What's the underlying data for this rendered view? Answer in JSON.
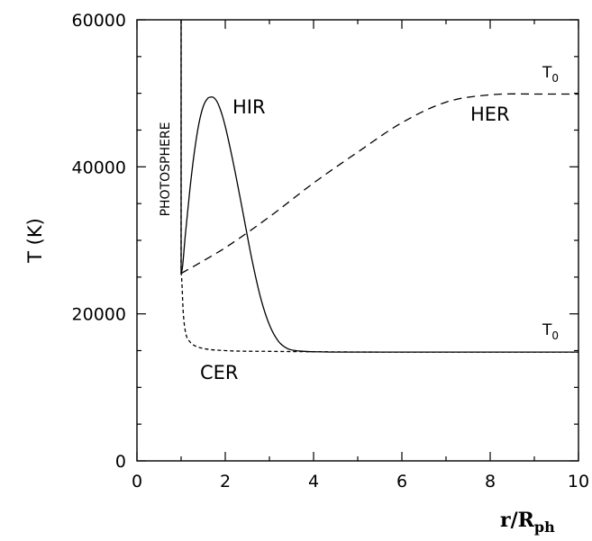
{
  "chart_data": {
    "type": "line",
    "title": "",
    "xlabel": {
      "main": "r/R",
      "sub": "ph"
    },
    "ylabel": "T (K)",
    "xlim": [
      0,
      10
    ],
    "ylim": [
      0,
      60000
    ],
    "xticks": [
      0,
      2,
      4,
      6,
      8,
      10
    ],
    "yticks": [
      0,
      20000,
      40000,
      60000
    ],
    "grid": false,
    "series": [
      {
        "name": "HIR",
        "style": "solid",
        "x": [
          1.0,
          1.0,
          1.1,
          1.2,
          1.3,
          1.4,
          1.5,
          1.6,
          1.7,
          1.8,
          1.9,
          2.0,
          2.2,
          2.4,
          2.6,
          2.8,
          3.0,
          3.2,
          3.4,
          3.6,
          3.8,
          4.0,
          4.5,
          5.0,
          6.0,
          8.0,
          10.0
        ],
        "y": [
          60000,
          25500,
          31000,
          37000,
          42000,
          45800,
          48200,
          49300,
          49500,
          49000,
          47600,
          45500,
          40000,
          33800,
          27500,
          22200,
          18500,
          16300,
          15300,
          15000,
          14900,
          14850,
          14800,
          14800,
          14800,
          14800,
          14800
        ]
      },
      {
        "name": "HER",
        "style": "long-dash",
        "x": [
          1.0,
          1.5,
          2.0,
          3.0,
          4.0,
          5.0,
          6.0,
          7.0,
          8.0,
          9.0,
          10.0
        ],
        "y": [
          25500,
          27200,
          29000,
          33200,
          37800,
          42000,
          46000,
          48800,
          49800,
          49900,
          49900
        ]
      },
      {
        "name": "CER",
        "style": "short-dash",
        "x": [
          1.0,
          1.0,
          1.05,
          1.1,
          1.2,
          1.3,
          1.5,
          2.0,
          3.0,
          4.0,
          6.0,
          8.0,
          10.0
        ],
        "y": [
          60000,
          25500,
          20000,
          17500,
          16200,
          15700,
          15300,
          15000,
          14900,
          14850,
          14800,
          14800,
          14800
        ]
      }
    ],
    "annotations": {
      "photosphere": "PHOTOSPHERE",
      "hir": "HIR",
      "her": "HER",
      "cer": "CER",
      "t0_upper": {
        "main": "T",
        "sub": "0"
      },
      "t0_lower": {
        "main": "T",
        "sub": "0"
      }
    },
    "colors": {
      "line": "#000000",
      "background": "#ffffff"
    }
  }
}
